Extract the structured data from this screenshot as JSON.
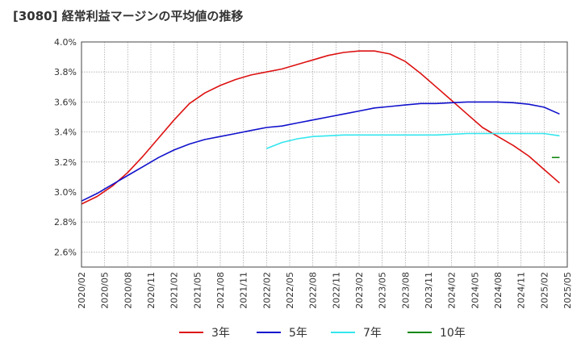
{
  "chart_data": {
    "type": "line",
    "title": "[3080]  経常利益マージンの平均値の推移",
    "xlabel": "",
    "ylabel": "",
    "x_tick_labels": [
      "2020/02",
      "2020/05",
      "2020/08",
      "2020/11",
      "2021/02",
      "2021/05",
      "2021/08",
      "2021/11",
      "2022/02",
      "2022/05",
      "2022/08",
      "2022/11",
      "2023/02",
      "2023/05",
      "2023/08",
      "2023/11",
      "2024/02",
      "2024/05",
      "2024/08",
      "2024/11",
      "2025/02",
      "2025/05"
    ],
    "y_tick_labels": [
      "2.6%",
      "2.8%",
      "3.0%",
      "3.2%",
      "3.4%",
      "3.6%",
      "3.8%",
      "4.0%"
    ],
    "y_ticks": [
      2.6,
      2.8,
      3.0,
      3.2,
      3.4,
      3.6,
      3.8,
      4.0
    ],
    "ylim": [
      2.5,
      4.0
    ],
    "x_range_months": [
      0,
      63
    ],
    "grid": true,
    "legend_position": "bottom",
    "colors": {
      "s3": "#dd1111",
      "s5": "#1111cc",
      "s7": "#33e6ee",
      "s10": "#118811",
      "grid": "#aaaaaa",
      "axis": "#444444"
    },
    "series": [
      {
        "name": "3年",
        "color": "#dd1111",
        "x": [
          0,
          2,
          4,
          6,
          8,
          10,
          12,
          14,
          16,
          18,
          20,
          22,
          24,
          26,
          28,
          30,
          32,
          34,
          36,
          38,
          40,
          42,
          44,
          46,
          48,
          50,
          52,
          54,
          56,
          58,
          60,
          62
        ],
        "y": [
          2.92,
          2.97,
          3.04,
          3.13,
          3.24,
          3.36,
          3.48,
          3.59,
          3.66,
          3.71,
          3.75,
          3.78,
          3.8,
          3.82,
          3.85,
          3.88,
          3.91,
          3.93,
          3.94,
          3.94,
          3.92,
          3.87,
          3.79,
          3.7,
          3.61,
          3.52,
          3.43,
          3.37,
          3.31,
          3.24,
          3.15,
          3.06
        ]
      },
      {
        "name": "5年",
        "color": "#1111cc",
        "x": [
          0,
          2,
          4,
          6,
          8,
          10,
          12,
          14,
          16,
          18,
          20,
          22,
          24,
          26,
          28,
          30,
          32,
          34,
          36,
          38,
          40,
          42,
          44,
          46,
          48,
          50,
          52,
          54,
          56,
          58,
          60,
          62
        ],
        "y": [
          2.94,
          2.99,
          3.05,
          3.11,
          3.17,
          3.23,
          3.28,
          3.32,
          3.35,
          3.37,
          3.39,
          3.41,
          3.43,
          3.44,
          3.46,
          3.48,
          3.5,
          3.52,
          3.54,
          3.56,
          3.57,
          3.58,
          3.59,
          3.59,
          3.595,
          3.6,
          3.6,
          3.6,
          3.595,
          3.585,
          3.565,
          3.52
        ]
      },
      {
        "name": "7年",
        "color": "#33e6ee",
        "x": [
          24,
          26,
          28,
          30,
          32,
          34,
          36,
          38,
          40,
          42,
          44,
          46,
          48,
          50,
          52,
          54,
          56,
          58,
          60,
          62
        ],
        "y": [
          3.29,
          3.33,
          3.355,
          3.37,
          3.375,
          3.38,
          3.38,
          3.38,
          3.38,
          3.38,
          3.38,
          3.38,
          3.385,
          3.39,
          3.39,
          3.39,
          3.39,
          3.39,
          3.39,
          3.375
        ]
      },
      {
        "name": "10年",
        "color": "#118811",
        "x": [
          61,
          62
        ],
        "y": [
          3.23,
          3.23
        ]
      }
    ]
  }
}
